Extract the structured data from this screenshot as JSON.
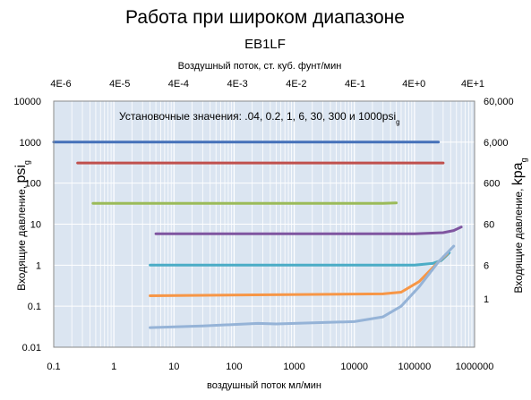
{
  "chart_data": {
    "type": "line",
    "title": "Работа при широком диапазоне",
    "subtitle": "EB1LF",
    "xlabel": "воздушный поток мл/мин",
    "x2label": "Воздушный поток, ст. куб. фунт/мин",
    "ylabel_left": "Входящие давление,",
    "ylabel_left_unit": "psi",
    "ylabel_left_sub": "g",
    "ylabel_right": "Входящие давление,",
    "ylabel_right_unit": "kpa",
    "ylabel_right_sub": "g",
    "annotation": "Установочные значения: .04, 0.2, 1, 6, 30, 300  и   1000psi",
    "annotation_sub": "g",
    "x_scale": "log",
    "y_scale": "log",
    "xlim": [
      0.1,
      1000000
    ],
    "ylim": [
      0.01,
      10000
    ],
    "x_ticks": [
      "0.1",
      "1",
      "10",
      "100",
      "1000",
      "10000",
      "100000",
      "1000000"
    ],
    "y_ticks": [
      "0.01",
      "0.1",
      "1",
      "10",
      "100",
      "1000",
      "10000"
    ],
    "x2_ticks": [
      "4E-6",
      "4E-5",
      "4E-4",
      "4E-3",
      "4E-2",
      "4E-1",
      "4E+0",
      "4E+1"
    ],
    "y2_ticks": [
      {
        "label": "60,000",
        "y": 10000
      },
      {
        "label": "6,000",
        "y": 1000
      },
      {
        "label": "600",
        "y": 100
      },
      {
        "label": "60",
        "y": 10
      },
      {
        "label": "6",
        "y": 1
      },
      {
        "label": "1",
        "y": 0.15
      }
    ],
    "grid": true,
    "series": [
      {
        "color": "#4571b9",
        "points": [
          [
            0.1,
            1000
          ],
          [
            250000,
            1000
          ]
        ]
      },
      {
        "color": "#c0504d",
        "points": [
          [
            0.25,
            310
          ],
          [
            300000,
            310
          ]
        ]
      },
      {
        "color": "#9bbb59",
        "points": [
          [
            0.45,
            32
          ],
          [
            30000,
            32
          ],
          [
            50000,
            33
          ]
        ]
      },
      {
        "color": "#7f55a0",
        "points": [
          [
            5,
            5.8
          ],
          [
            100000,
            5.8
          ],
          [
            300000,
            6.2
          ],
          [
            450000,
            7
          ],
          [
            600000,
            8.5
          ]
        ]
      },
      {
        "color": "#4bacc6",
        "points": [
          [
            4,
            1.0
          ],
          [
            100000,
            1.0
          ],
          [
            200000,
            1.1
          ],
          [
            280000,
            1.3
          ],
          [
            380000,
            2.0
          ]
        ]
      },
      {
        "color": "#f79646",
        "points": [
          [
            4,
            0.18
          ],
          [
            30000,
            0.2
          ],
          [
            60000,
            0.22
          ],
          [
            120000,
            0.4
          ],
          [
            250000,
            1.2
          ],
          [
            350000,
            1.9
          ]
        ]
      },
      {
        "color": "#95b3d7",
        "points": [
          [
            4,
            0.03
          ],
          [
            30,
            0.033
          ],
          [
            250,
            0.038
          ],
          [
            500,
            0.037
          ],
          [
            10000,
            0.042
          ],
          [
            30000,
            0.055
          ],
          [
            60000,
            0.1
          ],
          [
            120000,
            0.3
          ],
          [
            250000,
            1.2
          ],
          [
            450000,
            2.9
          ]
        ]
      }
    ]
  },
  "colors": {
    "plot_background": "#dbe5f1",
    "grid_major": "#ffffff",
    "grid_minor": "#ffffff"
  }
}
